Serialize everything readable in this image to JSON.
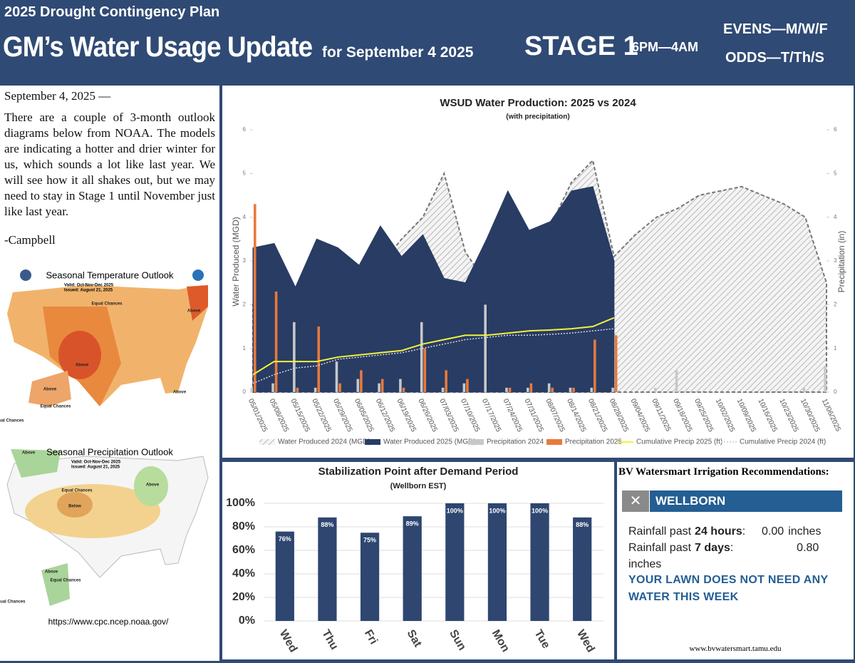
{
  "header": {
    "plan": "2025 Drought Contingency Plan",
    "title": "GM’s Water Usage Update",
    "date": "for September 4 2025",
    "stage": "STAGE 1",
    "hours": "6PM—4AM",
    "evens": "EVENS—M/W/F",
    "odds": "ODDS—T/Th/S"
  },
  "letter": {
    "date": "September 4, 2025 —",
    "body": "There are a couple of 3-month outlook diagrams below from NOAA.  The models are indicating a hotter and drier winter for us, which sounds a lot like last year.  We will see how it all shakes out, but we may need to stay in Stage 1 until November just like last year.",
    "signature": "-Campbell"
  },
  "maps": [
    {
      "title": "Seasonal Temperature Outlook",
      "valid": "Valid: Oct-Nov-Dec 2025",
      "issued": "Issued: August 21, 2025",
      "labels": [
        "Equal Chances",
        "Above",
        "Above",
        "Above",
        "Equal Chances",
        "Above",
        "Equal Chances"
      ]
    },
    {
      "title": "Seasonal Precipitation Outlook",
      "valid": "Valid: Oct-Nov-Dec 2025",
      "issued": "Issued: August 21, 2025",
      "labels": [
        "Above",
        "Above",
        "Equal Chances",
        "Below",
        "Above",
        "Equal Chances",
        "Equal Chances"
      ]
    }
  ],
  "source": "https://www.cpc.ncep.noaa.gov/",
  "chart_data": [
    {
      "type": "combo",
      "title": "WSUD Water Production: 2025 vs 2024",
      "subtitle": "(with precipitation)",
      "y_label": "Water Produced (MGD)",
      "y2_label": "Precipitation (in)",
      "categories": [
        "05/01/2025",
        "05/08/2025",
        "05/15/2025",
        "05/22/2025",
        "05/29/2025",
        "06/05/2025",
        "06/12/2025",
        "06/19/2025",
        "06/26/2025",
        "07/03/2025",
        "07/10/2025",
        "07/17/2025",
        "07/24/2025",
        "07/31/2025",
        "08/07/2025",
        "08/14/2025",
        "08/21/2025",
        "08/28/2025",
        "09/04/2025",
        "09/11/2025",
        "09/18/2025",
        "09/25/2025",
        "10/02/2025",
        "10/09/2025",
        "10/16/2025",
        "10/23/2025",
        "10/30/2025",
        "11/06/2025"
      ],
      "ylim": [
        0,
        6
      ],
      "yticks": [
        0,
        1,
        2,
        3,
        4,
        5,
        6
      ],
      "y2lim": [
        0,
        6
      ],
      "y2ticks": [
        0,
        1,
        2,
        3,
        4,
        5,
        6
      ],
      "series": [
        {
          "name": "Water Produced 2024 (MGD)",
          "type": "area",
          "pattern": "hatch",
          "color": "#8a8a8a",
          "values": [
            2.0,
            2.2,
            2.0,
            2.5,
            2.3,
            2.6,
            2.9,
            3.5,
            4.0,
            5.0,
            3.2,
            2.5,
            2.0,
            2.3,
            3.8,
            4.8,
            5.3,
            3.1,
            3.6,
            4.0,
            4.2,
            4.5,
            4.6,
            4.7,
            4.5,
            4.3,
            4.0,
            2.5
          ]
        },
        {
          "name": "Water Produced 2025 (MGD)",
          "type": "area",
          "color": "#283c64",
          "values": [
            3.3,
            3.4,
            2.4,
            3.5,
            3.3,
            2.9,
            3.8,
            3.1,
            3.6,
            2.6,
            2.5,
            3.5,
            4.6,
            3.7,
            3.9,
            4.6,
            4.7,
            3.0,
            null,
            null,
            null,
            null,
            null,
            null,
            null,
            null,
            null,
            null
          ]
        },
        {
          "name": "Precipitation 2024",
          "type": "bar",
          "axis": "y2",
          "color": "#c8c8c8",
          "values": [
            0.1,
            0.2,
            1.6,
            0.1,
            0.7,
            0.3,
            0.2,
            0.3,
            1.6,
            0.1,
            0.2,
            2.0,
            0.1,
            0.1,
            0.2,
            0.1,
            0.1,
            0.1,
            0,
            0.1,
            0.5,
            0,
            0,
            0,
            0,
            0,
            0.1,
            0.6
          ]
        },
        {
          "name": "Precipitation 2025",
          "type": "bar",
          "axis": "y2",
          "color": "#e8793c",
          "values": [
            4.3,
            2.3,
            0.1,
            1.5,
            0.2,
            0.5,
            0.3,
            0.1,
            1.0,
            0.5,
            0.3,
            0,
            0.1,
            0.2,
            0.1,
            0.1,
            1.2,
            1.3,
            null,
            null,
            null,
            null,
            null,
            null,
            null,
            null,
            null,
            null
          ]
        },
        {
          "name": "Cumulative Precip 2025 (ft)",
          "type": "line",
          "axis": "y2",
          "color": "#f2f23a",
          "values": [
            0.4,
            0.7,
            0.7,
            0.7,
            0.8,
            0.85,
            0.9,
            0.95,
            1.1,
            1.2,
            1.3,
            1.3,
            1.35,
            1.4,
            1.42,
            1.45,
            1.5,
            1.7,
            null,
            null,
            null,
            null,
            null,
            null,
            null,
            null,
            null,
            null
          ]
        },
        {
          "name": "Cumulative Precip 2024 (ft)",
          "type": "line",
          "dash": true,
          "axis": "y2",
          "color": "#d8d8d8",
          "values": [
            0.2,
            0.4,
            0.55,
            0.6,
            0.75,
            0.8,
            0.85,
            0.9,
            1.0,
            1.1,
            1.2,
            1.25,
            1.3,
            1.3,
            1.32,
            1.35,
            1.4,
            1.45,
            null,
            null,
            null,
            null,
            null,
            null,
            null,
            null,
            null,
            null
          ]
        }
      ]
    },
    {
      "type": "bar",
      "title": "Stabilization Point after Demand Period",
      "subtitle": "(Wellborn EST)",
      "categories": [
        "Wed",
        "Thu",
        "Fri",
        "Sat",
        "Sun",
        "Mon",
        "Tue",
        "Wed"
      ],
      "values": [
        76,
        88,
        75,
        89,
        100,
        100,
        100,
        88
      ],
      "value_labels": [
        "76%",
        "88%",
        "75%",
        "89%",
        "100%",
        "100%",
        "100%",
        "88%"
      ],
      "color": "#2e4670",
      "ylim": [
        0,
        100
      ],
      "grid": true,
      "yticks": [
        {
          "value": 0,
          "label": "0%"
        },
        {
          "value": 20,
          "label": "20%"
        },
        {
          "value": 40,
          "label": "40%"
        },
        {
          "value": 60,
          "label": "60%"
        },
        {
          "value": 80,
          "label": "80%"
        },
        {
          "value": 100,
          "label": "100%"
        }
      ]
    }
  ],
  "watersmart": {
    "title": "BV Watersmart Irrigation Recommendations:",
    "station": "WELLBORN",
    "rows": [
      {
        "prefix": "Rainfall past",
        "period": "24 hours",
        "value": "0.00",
        "unit": "inches"
      },
      {
        "prefix": "Rainfall past",
        "period": "7 days",
        "value": "0.80",
        "unit": "inches"
      }
    ],
    "message": "YOUR LAWN DOES NOT NEED ANY WATER THIS WEEK",
    "url": "www.bvwatersmart.tamu.edu"
  }
}
